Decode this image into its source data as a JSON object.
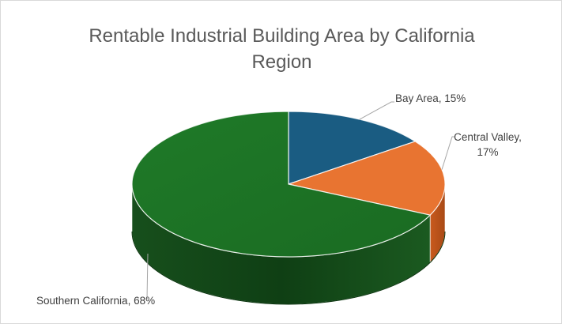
{
  "chart_data": {
    "type": "pie",
    "title_lines": [
      "Rentable Industrial Building Area by California",
      "Region"
    ],
    "slices": [
      {
        "label": "Bay Area",
        "value": 15,
        "color": "#1a5c82",
        "label_lines": [
          "Bay Area, 15%"
        ]
      },
      {
        "label": "Central Valley",
        "value": 17,
        "color": "#e87431",
        "label_lines": [
          "Central Valley,",
          "17%"
        ]
      },
      {
        "label": "Southern California",
        "value": 68,
        "color": "#1a6b22",
        "label_lines": [
          "Southern California, 68%"
        ]
      }
    ],
    "style": "3d-pie",
    "data_labels": "outside-with-leader-lines"
  }
}
